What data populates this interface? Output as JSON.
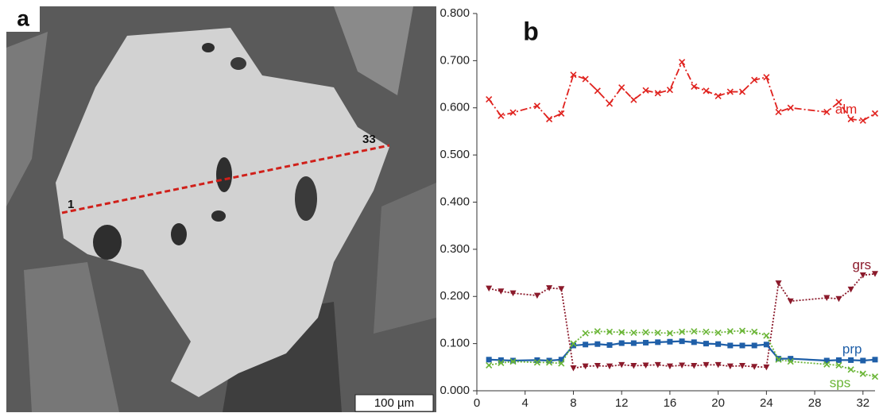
{
  "panel_a": {
    "label": "a",
    "start_label": "1",
    "end_label": "33",
    "scale_bar": "100 µm"
  },
  "chart_data": {
    "type": "line",
    "panel_label": "b",
    "x": [
      1,
      2,
      3,
      5,
      6,
      7,
      8,
      9,
      10,
      11,
      12,
      13,
      14,
      15,
      16,
      17,
      18,
      19,
      20,
      21,
      22,
      23,
      24,
      25,
      26,
      29,
      30,
      31,
      32,
      33
    ],
    "xlim": [
      0,
      33
    ],
    "xticks": [
      0,
      4,
      8,
      12,
      16,
      20,
      24,
      28,
      32
    ],
    "ylim": [
      0,
      0.8
    ],
    "yticks": [
      {
        "value": 0,
        "label": "0.000"
      },
      {
        "value": 0.1,
        "label": "0.100"
      },
      {
        "value": 0.2,
        "label": "0.200"
      },
      {
        "value": 0.3,
        "label": "0.300"
      },
      {
        "value": 0.4,
        "label": "0.400"
      },
      {
        "value": 0.5,
        "label": "0.500"
      },
      {
        "value": 0.6,
        "label": "0.600"
      },
      {
        "value": 0.7,
        "label": "0.700"
      },
      {
        "value": 0.8,
        "label": "0.800"
      }
    ],
    "grid": false,
    "series": [
      {
        "name": "alm",
        "color": "#e0231f",
        "marker": "x",
        "dash": "dashdot",
        "values": [
          0.618,
          0.583,
          0.59,
          0.604,
          0.576,
          0.588,
          0.67,
          0.661,
          0.636,
          0.609,
          0.643,
          0.617,
          0.637,
          0.631,
          0.638,
          0.697,
          0.645,
          0.636,
          0.625,
          0.634,
          0.634,
          0.659,
          0.665,
          0.591,
          0.6,
          0.591,
          0.612,
          0.576,
          0.573,
          0.588
        ]
      },
      {
        "name": "grs",
        "color": "#8b1a2b",
        "marker": "triangle-down",
        "dash": "dot",
        "values": [
          0.217,
          0.211,
          0.207,
          0.202,
          0.218,
          0.216,
          0.048,
          0.052,
          0.053,
          0.052,
          0.055,
          0.053,
          0.054,
          0.055,
          0.052,
          0.054,
          0.053,
          0.055,
          0.055,
          0.052,
          0.053,
          0.051,
          0.05,
          0.228,
          0.19,
          0.197,
          0.195,
          0.215,
          0.245,
          0.248
        ]
      },
      {
        "name": "prp",
        "color": "#1f5fa8",
        "marker": "square",
        "dash": "solid",
        "values": [
          0.066,
          0.065,
          0.064,
          0.065,
          0.064,
          0.066,
          0.096,
          0.098,
          0.099,
          0.097,
          0.101,
          0.101,
          0.102,
          0.103,
          0.104,
          0.105,
          0.103,
          0.1,
          0.099,
          0.096,
          0.096,
          0.096,
          0.098,
          0.068,
          0.068,
          0.064,
          0.065,
          0.065,
          0.064,
          0.066
        ]
      },
      {
        "name": "sps",
        "color": "#6ab536",
        "marker": "x",
        "dash": "dot",
        "values": [
          0.054,
          0.059,
          0.062,
          0.06,
          0.06,
          0.058,
          0.1,
          0.122,
          0.126,
          0.125,
          0.124,
          0.123,
          0.124,
          0.123,
          0.122,
          0.125,
          0.126,
          0.125,
          0.123,
          0.126,
          0.127,
          0.125,
          0.117,
          0.066,
          0.062,
          0.056,
          0.054,
          0.045,
          0.036,
          0.03
        ]
      }
    ]
  }
}
